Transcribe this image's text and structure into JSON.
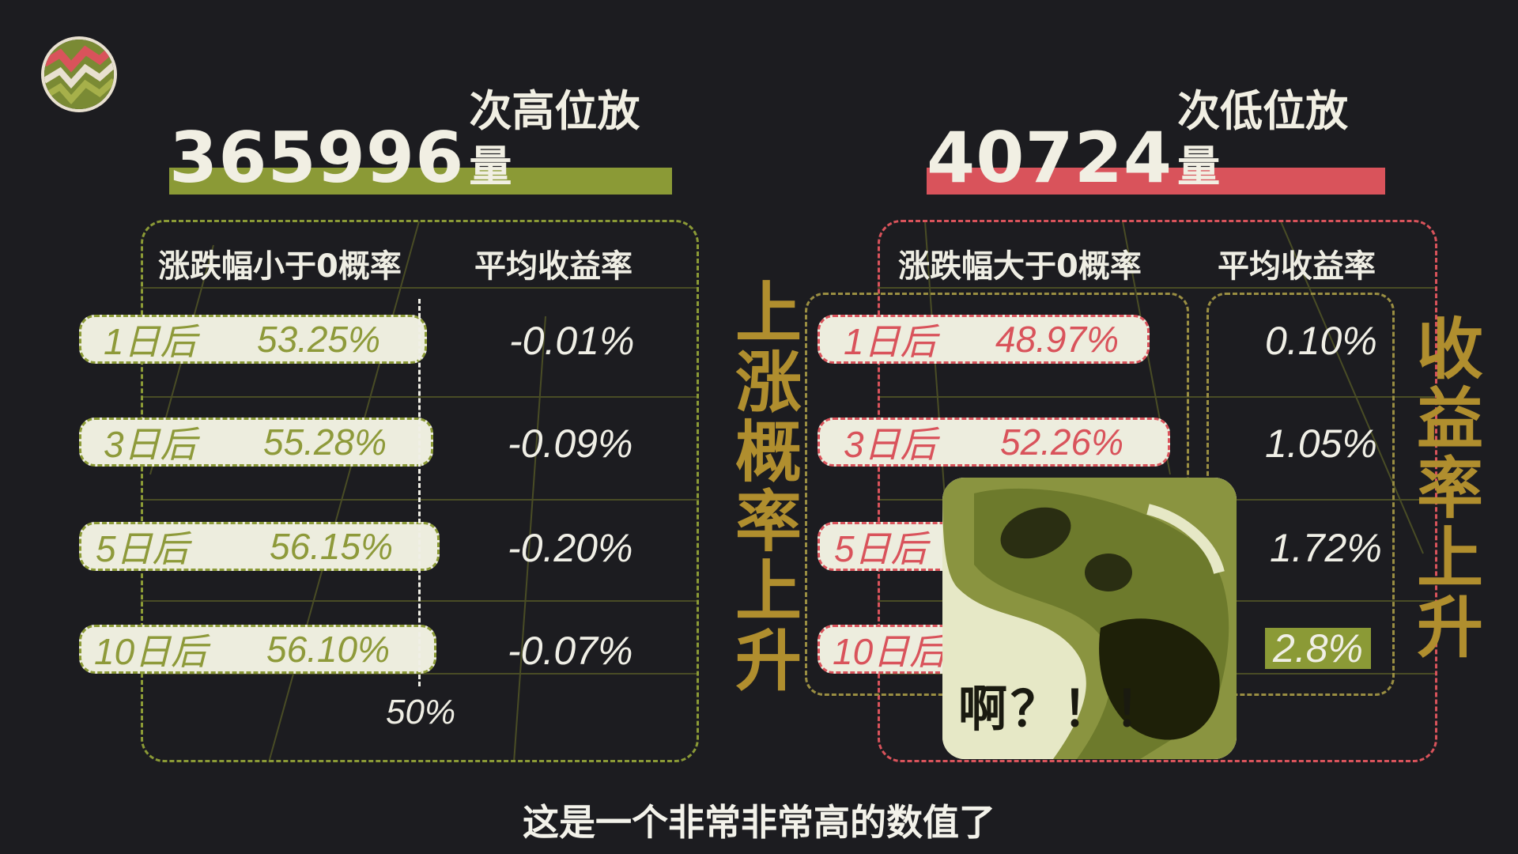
{
  "left": {
    "count": "365996",
    "count_suffix": "次高位放量",
    "col1": "涨跌幅小于0概率",
    "col2": "平均收益率",
    "rows": [
      {
        "day": "1日后",
        "prob": "53.25%",
        "ret": "-0.01%"
      },
      {
        "day": "3日后",
        "prob": "55.28%",
        "ret": "-0.09%"
      },
      {
        "day": "5日后",
        "prob": "56.15%",
        "ret": "-0.20%"
      },
      {
        "day": "10日后",
        "prob": "56.10%",
        "ret": "-0.07%"
      }
    ],
    "marker": "50%"
  },
  "right": {
    "count": "40724",
    "count_suffix": "次低位放量",
    "col1": "涨跌幅大于0概率",
    "col2": "平均收益率",
    "rows": [
      {
        "day": "1日后",
        "prob": "48.97%",
        "ret": "0.10%"
      },
      {
        "day": "3日后",
        "prob": "52.26%",
        "ret": "1.05%"
      },
      {
        "day": "5日后",
        "prob": "",
        "ret": "1.72%"
      },
      {
        "day": "10日后",
        "prob": "",
        "ret": "2.8%"
      }
    ]
  },
  "labels": {
    "prob_up": "上涨概率上升",
    "return_up": "收益率上升"
  },
  "meme_caption": "啊？！！",
  "subtitle": "这是一个非常非常高的数值了",
  "colors": {
    "green": "#8b9a36",
    "red": "#d9535b",
    "gold": "#b08e2e",
    "bg": "#1c1c20"
  }
}
